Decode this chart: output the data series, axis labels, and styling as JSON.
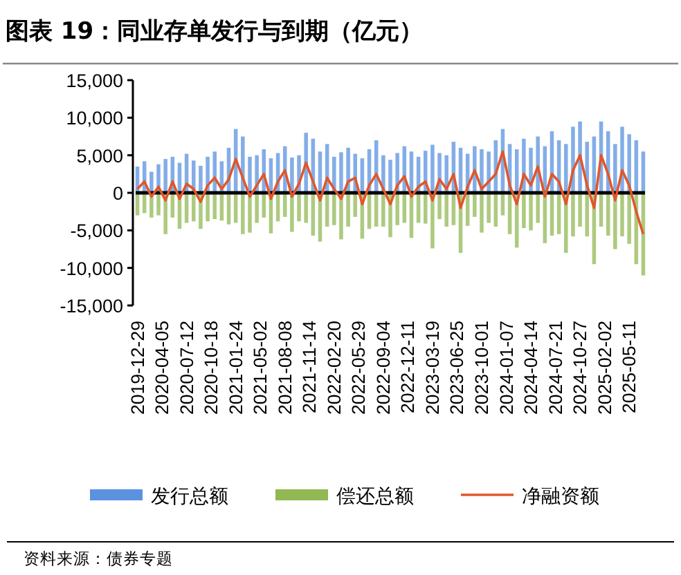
{
  "chart_data": {
    "type": "bar",
    "title": "图表 19：同业存单发行与到期（亿元）",
    "x": [
      "2019-12-29",
      "2020-01-26",
      "2020-02-23",
      "2020-03-22",
      "2020-04-19",
      "2020-05-17",
      "2020-06-14",
      "2020-07-12",
      "2020-08-09",
      "2020-09-06",
      "2020-10-04",
      "2020-11-01",
      "2020-11-29",
      "2020-12-27",
      "2021-01-24",
      "2021-02-21",
      "2021-03-21",
      "2021-04-18",
      "2021-05-16",
      "2021-06-13",
      "2021-07-11",
      "2021-08-08",
      "2021-09-05",
      "2021-10-03",
      "2021-10-31",
      "2021-11-28",
      "2021-12-26",
      "2022-01-23",
      "2022-02-20",
      "2022-03-20",
      "2022-04-17",
      "2022-05-15",
      "2022-06-12",
      "2022-07-10",
      "2022-08-07",
      "2022-09-04",
      "2022-10-02",
      "2022-10-30",
      "2022-11-27",
      "2022-12-25",
      "2023-01-22",
      "2023-02-19",
      "2023-03-19",
      "2023-04-16",
      "2023-05-14",
      "2023-06-11",
      "2023-07-09",
      "2023-08-06",
      "2023-09-03",
      "2023-10-01",
      "2023-10-29",
      "2023-11-26",
      "2023-12-24",
      "2024-01-21",
      "2024-02-18",
      "2024-03-17",
      "2024-04-14",
      "2024-05-12",
      "2024-06-09",
      "2024-07-07",
      "2024-08-04",
      "2024-09-01",
      "2024-09-29",
      "2024-10-27",
      "2024-11-24",
      "2024-12-22",
      "2025-01-19",
      "2025-02-16",
      "2025-03-16",
      "2025-04-13",
      "2025-05-11",
      "2025-06-08",
      "2025-07-06"
    ],
    "series": [
      {
        "name": "发行总额",
        "color": "#5a92e0",
        "values": [
          3500,
          4200,
          2800,
          3800,
          4500,
          4800,
          4000,
          5200,
          4300,
          3600,
          4800,
          5500,
          4200,
          6000,
          8500,
          7500,
          4800,
          5000,
          5800,
          4600,
          5300,
          6200,
          4700,
          5000,
          8000,
          7200,
          5500,
          6500,
          4800,
          5400,
          6000,
          5200,
          4600,
          5800,
          7000,
          5000,
          4400,
          5300,
          6200,
          5500,
          4800,
          5600,
          6400,
          5300,
          5000,
          6800,
          6000,
          5200,
          6200,
          5800,
          5500,
          7000,
          8500,
          6500,
          5800,
          7200,
          6000,
          7500,
          6200,
          8200,
          7000,
          6500,
          8800,
          9500,
          6800,
          7500,
          9500,
          8200,
          6500,
          8800,
          7800,
          7000,
          5500
        ]
      },
      {
        "name": "偿还总额",
        "color": "#92b854",
        "values": [
          -3000,
          -2700,
          -3300,
          -3000,
          -5500,
          -3300,
          -4800,
          -4000,
          -3800,
          -4800,
          -3800,
          -3500,
          -3700,
          -4200,
          -4000,
          -5500,
          -5300,
          -4000,
          -3300,
          -5400,
          -3800,
          -3200,
          -5200,
          -3800,
          -4000,
          -5700,
          -6500,
          -4500,
          -4300,
          -6200,
          -4500,
          -3200,
          -6100,
          -4800,
          -4500,
          -4500,
          -5900,
          -4300,
          -4000,
          -6000,
          -4000,
          -4100,
          -7400,
          -3500,
          -4500,
          -4300,
          -8000,
          -4400,
          -3200,
          -5300,
          -4000,
          -4500,
          -3000,
          -5500,
          -7300,
          -4700,
          -5000,
          -4000,
          -6700,
          -5700,
          -5500,
          -8000,
          -5800,
          -4500,
          -5800,
          -9500,
          -4500,
          -5700,
          -7500,
          -5800,
          -6800,
          -9500,
          -11000
        ]
      },
      {
        "name": "净融资额",
        "type": "line",
        "color": "#e0572a",
        "values": [
          500,
          1500,
          -500,
          800,
          -1000,
          1500,
          -800,
          1200,
          500,
          -1200,
          1000,
          2000,
          500,
          1800,
          4500,
          2000,
          -500,
          1000,
          2500,
          -800,
          1500,
          3000,
          -500,
          1200,
          4000,
          1500,
          -1000,
          2000,
          500,
          -800,
          1500,
          2000,
          -1500,
          1000,
          2500,
          500,
          -1500,
          1000,
          2200,
          -500,
          800,
          1500,
          -1000,
          1800,
          500,
          2500,
          -2000,
          800,
          3000,
          500,
          1500,
          2500,
          5500,
          1000,
          -1500,
          2500,
          1000,
          3500,
          -500,
          2500,
          1500,
          -1500,
          3000,
          5000,
          1000,
          -2000,
          5000,
          2500,
          -1000,
          3000,
          1000,
          -2500,
          -5500
        ]
      }
    ],
    "xlim": [
      "2019-12-22",
      "2025-07-13"
    ],
    "xticks": [
      "2019-12-29",
      "2020-04-05",
      "2020-07-12",
      "2020-10-18",
      "2021-01-24",
      "2021-05-02",
      "2021-08-08",
      "2021-11-14",
      "2022-02-20",
      "2022-05-29",
      "2022-09-04",
      "2022-12-11",
      "2023-03-19",
      "2023-06-25",
      "2023-10-01",
      "2024-01-07",
      "2024-04-14",
      "2024-07-21",
      "2024-10-27",
      "2025-02-02",
      "2025-05-11"
    ],
    "ylim": [
      -15000,
      15000
    ],
    "yticks": [
      {
        "value": -15000,
        "label": "-15,000"
      },
      {
        "value": -10000,
        "label": "-10,000"
      },
      {
        "value": -5000,
        "label": "-5,000"
      },
      {
        "value": 0,
        "label": "0"
      },
      {
        "value": 5000,
        "label": "5,000"
      },
      {
        "value": 10000,
        "label": "10,000"
      },
      {
        "value": 15000,
        "label": "15,000"
      }
    ],
    "legend": "bottom",
    "annotations": [
      "资料来源：债券专题"
    ]
  }
}
